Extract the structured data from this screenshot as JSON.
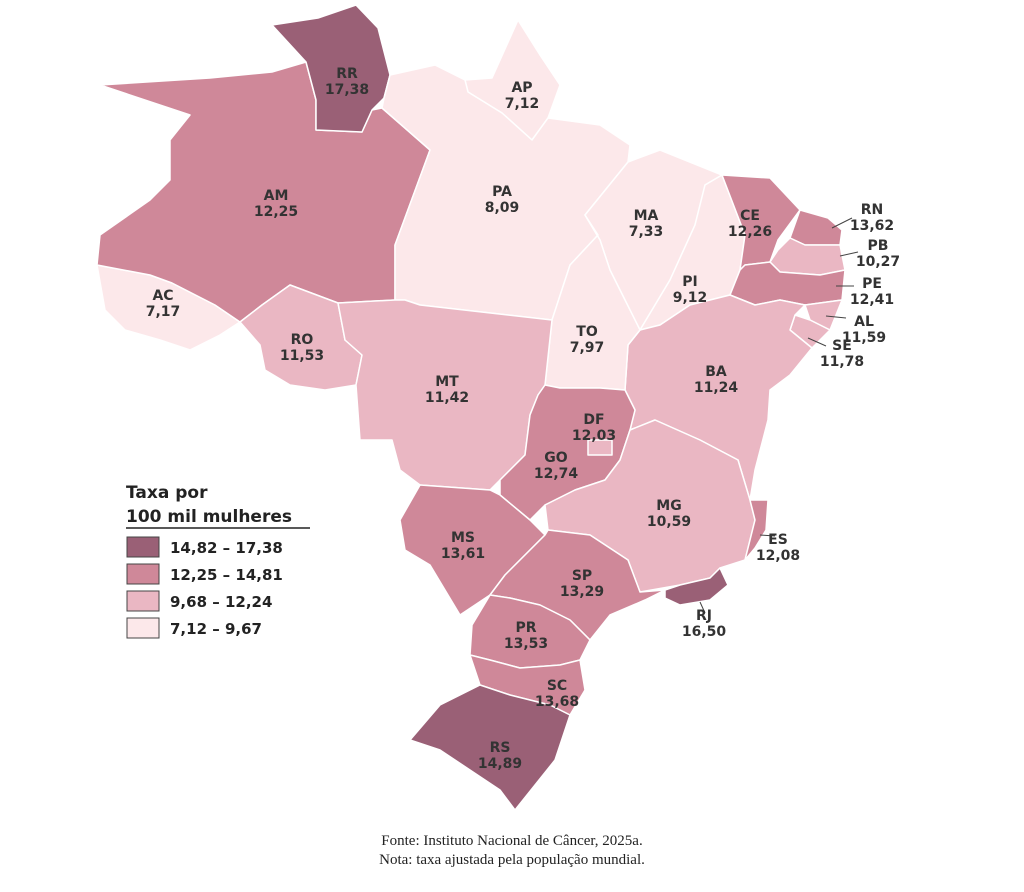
{
  "legend": {
    "title_line1": "Taxa por",
    "title_line2": "100 mil mulheres",
    "classes": [
      {
        "range": "14,82 – 17,38",
        "color": "#9a6076"
      },
      {
        "range": "12,25 – 14,81",
        "color": "#cf8899"
      },
      {
        "range": "9,68 – 12,24",
        "color": "#eab7c3"
      },
      {
        "range": "7,12 – 9,67",
        "color": "#fce8ea"
      }
    ]
  },
  "states": [
    {
      "code": "RR",
      "value": "17,38"
    },
    {
      "code": "AP",
      "value": "7,12"
    },
    {
      "code": "AM",
      "value": "12,25"
    },
    {
      "code": "PA",
      "value": "8,09"
    },
    {
      "code": "MA",
      "value": "7,33"
    },
    {
      "code": "CE",
      "value": "12,26"
    },
    {
      "code": "RN",
      "value": "13,62"
    },
    {
      "code": "PB",
      "value": "10,27"
    },
    {
      "code": "PE",
      "value": "12,41"
    },
    {
      "code": "AL",
      "value": "11,59"
    },
    {
      "code": "SE",
      "value": "11,78"
    },
    {
      "code": "PI",
      "value": "9,12"
    },
    {
      "code": "AC",
      "value": "7,17"
    },
    {
      "code": "RO",
      "value": "11,53"
    },
    {
      "code": "TO",
      "value": "7,97"
    },
    {
      "code": "MT",
      "value": "11,42"
    },
    {
      "code": "BA",
      "value": "11,24"
    },
    {
      "code": "DF",
      "value": "12,03"
    },
    {
      "code": "GO",
      "value": "12,74"
    },
    {
      "code": "MG",
      "value": "10,59"
    },
    {
      "code": "MS",
      "value": "13,61"
    },
    {
      "code": "ES",
      "value": "12,08"
    },
    {
      "code": "SP",
      "value": "13,29"
    },
    {
      "code": "RJ",
      "value": "16,50"
    },
    {
      "code": "PR",
      "value": "13,53"
    },
    {
      "code": "SC",
      "value": "13,68"
    },
    {
      "code": "RS",
      "value": "14,89"
    }
  ],
  "caption": {
    "source": "Fonte: Instituto Nacional de Câncer, 2025a.",
    "note": "Nota: taxa ajustada pela população mundial."
  }
}
